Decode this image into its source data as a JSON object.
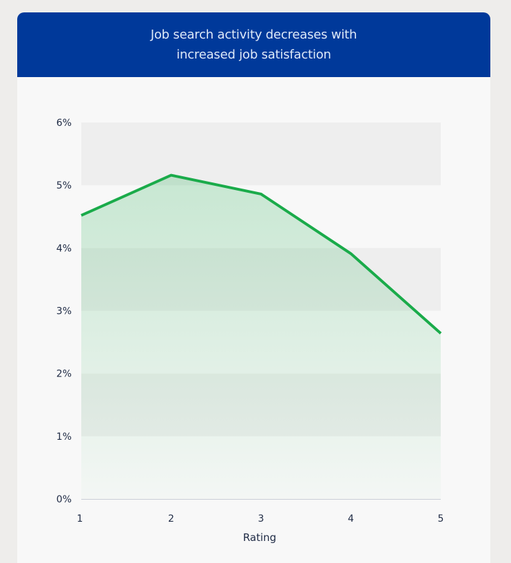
{
  "chart_data": {
    "type": "area",
    "title": "Job search activity decreases with increased job satisfaction",
    "xlabel": "Rating",
    "ylabel": "",
    "x": [
      1,
      2,
      3,
      4,
      5
    ],
    "y_ticks": [
      "0%",
      "1%",
      "2%",
      "3%",
      "4%",
      "5%",
      "6%"
    ],
    "x_ticks": [
      "1",
      "2",
      "3",
      "4",
      "5"
    ],
    "ylim": [
      0,
      6
    ],
    "series": [
      {
        "values": [
          4.52,
          5.16,
          4.86,
          3.91,
          2.64
        ]
      }
    ],
    "line_color": "#1aab4a",
    "header_color": "#00399a"
  }
}
